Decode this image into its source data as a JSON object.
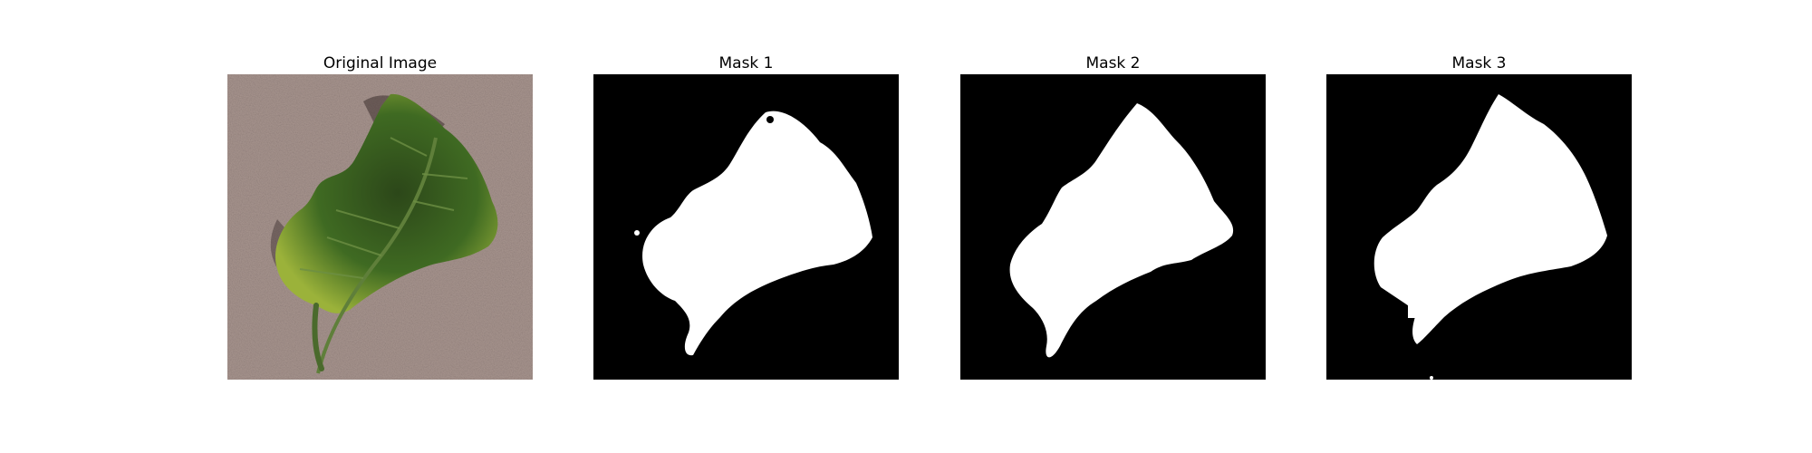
{
  "figure": {
    "panels": [
      {
        "title": "Original Image",
        "content": "leaf photograph on speckled background"
      },
      {
        "title": "Mask 1",
        "content": "binary segmentation mask"
      },
      {
        "title": "Mask 2",
        "content": "binary segmentation mask"
      },
      {
        "title": "Mask 3",
        "content": "binary segmentation mask"
      }
    ]
  },
  "colors": {
    "mask_bg": "#000000",
    "mask_fg": "#ffffff",
    "background_texture": "#a08d88",
    "leaf_dark": "#2f4a1c",
    "leaf_mid": "#4f7a2a",
    "leaf_light": "#8fae3a"
  }
}
